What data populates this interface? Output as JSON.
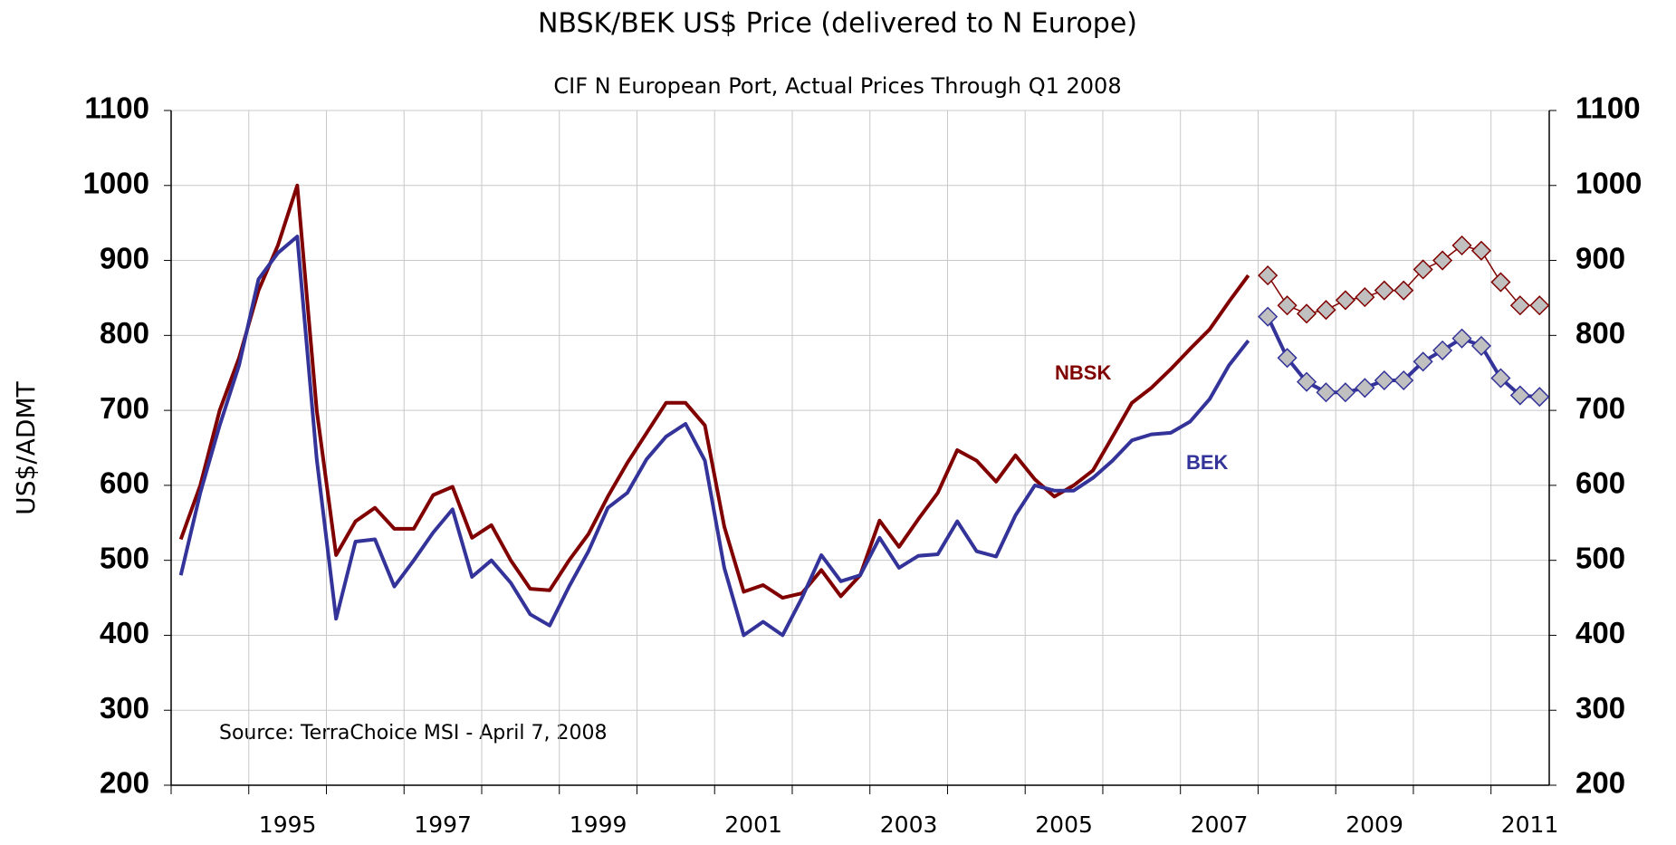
{
  "chart_data": {
    "type": "line",
    "title": "NBSK/BEK US$ Price (delivered to N Europe)",
    "subtitle": "CIF N European Port,  Actual Prices Through Q1 2008",
    "y_label": "US$/ADMT",
    "source": "Source: TerraChoice MSI - April 7, 2008",
    "x": [
      1994.125,
      1994.375,
      1994.625,
      1994.875,
      1995.125,
      1995.375,
      1995.625,
      1995.875,
      1996.125,
      1996.375,
      1996.625,
      1996.875,
      1997.125,
      1997.375,
      1997.625,
      1997.875,
      1998.125,
      1998.375,
      1998.625,
      1998.875,
      1999.125,
      1999.375,
      1999.625,
      1999.875,
      2000.125,
      2000.375,
      2000.625,
      2000.875,
      2001.125,
      2001.375,
      2001.625,
      2001.875,
      2002.125,
      2002.375,
      2002.625,
      2002.875,
      2003.125,
      2003.375,
      2003.625,
      2003.875,
      2004.125,
      2004.375,
      2004.625,
      2004.875,
      2005.125,
      2005.375,
      2005.625,
      2005.875,
      2006.125,
      2006.375,
      2006.625,
      2006.875,
      2007.125,
      2007.375,
      2007.625,
      2007.875,
      2008.125,
      2008.375,
      2008.625,
      2008.875,
      2009.125,
      2009.375,
      2009.625,
      2009.875,
      2010.125,
      2010.375,
      2010.625,
      2010.875,
      2011.125,
      2011.375,
      2011.625
    ],
    "xlim": [
      1994,
      2011.75
    ],
    "xticks": [
      1995,
      1997,
      1999,
      2001,
      2003,
      2005,
      2007,
      2009,
      2011
    ],
    "xgridticks": [
      1994,
      1995,
      1996,
      1997,
      1998,
      1999,
      2000,
      2001,
      2002,
      2003,
      2004,
      2005,
      2006,
      2007,
      2008,
      2009,
      2010,
      2011
    ],
    "ylim": [
      200,
      1100
    ],
    "yticks": [
      200,
      300,
      400,
      500,
      600,
      700,
      800,
      900,
      1000,
      1100
    ],
    "y2lim": [
      200,
      1100
    ],
    "y2ticks": [
      200,
      300,
      400,
      500,
      600,
      700,
      800,
      900,
      1000,
      1100
    ],
    "grid": true,
    "series": [
      {
        "name": "NBSK",
        "color": "#800000",
        "width": 4,
        "values": [
          528,
          600,
          700,
          770,
          860,
          920,
          1000,
          700,
          507,
          552,
          570,
          542,
          542,
          587,
          598,
          530,
          547,
          500,
          462,
          460,
          500,
          535,
          585,
          630,
          670,
          710,
          710,
          680,
          545,
          458,
          467,
          450,
          456,
          487,
          452,
          480,
          553,
          518,
          555,
          590,
          647,
          633,
          605,
          640,
          608,
          585,
          600,
          620,
          665,
          710,
          730,
          755,
          782,
          808,
          845,
          880,
          null,
          null,
          null,
          null,
          null,
          null,
          null,
          null,
          null,
          null,
          null,
          null,
          null,
          null,
          null
        ]
      },
      {
        "color": "#800000",
        "width": 1.5,
        "marker": "diamond",
        "values": [
          null,
          null,
          null,
          null,
          null,
          null,
          null,
          null,
          null,
          null,
          null,
          null,
          null,
          null,
          null,
          null,
          null,
          null,
          null,
          null,
          null,
          null,
          null,
          null,
          null,
          null,
          null,
          null,
          null,
          null,
          null,
          null,
          null,
          null,
          null,
          null,
          null,
          null,
          null,
          null,
          null,
          null,
          null,
          null,
          null,
          null,
          null,
          null,
          null,
          null,
          null,
          null,
          null,
          null,
          null,
          null,
          880,
          840,
          829,
          834,
          847,
          851,
          860,
          860,
          888,
          900,
          920,
          913,
          871,
          840,
          840
        ]
      },
      {
        "name": "BEK",
        "color": "#333399",
        "width": 4,
        "values": [
          480,
          590,
          680,
          760,
          875,
          910,
          932,
          635,
          422,
          525,
          528,
          465,
          500,
          537,
          568,
          478,
          500,
          470,
          428,
          413,
          465,
          512,
          570,
          590,
          635,
          665,
          682,
          633,
          490,
          400,
          418,
          400,
          450,
          507,
          472,
          480,
          530,
          490,
          506,
          508,
          552,
          512,
          505,
          560,
          600,
          593,
          593,
          610,
          633,
          660,
          668,
          670,
          685,
          715,
          760,
          793,
          null,
          null,
          null,
          null,
          null,
          null,
          null,
          null,
          null,
          null,
          null,
          null,
          null,
          null,
          null
        ]
      },
      {
        "color": "#333399",
        "width": 4,
        "marker": "diamond",
        "values": [
          null,
          null,
          null,
          null,
          null,
          null,
          null,
          null,
          null,
          null,
          null,
          null,
          null,
          null,
          null,
          null,
          null,
          null,
          null,
          null,
          null,
          null,
          null,
          null,
          null,
          null,
          null,
          null,
          null,
          null,
          null,
          null,
          null,
          null,
          null,
          null,
          null,
          null,
          null,
          null,
          null,
          null,
          null,
          null,
          null,
          null,
          null,
          null,
          null,
          null,
          null,
          null,
          null,
          null,
          null,
          null,
          825,
          770,
          738,
          724,
          724,
          730,
          740,
          740,
          765,
          780,
          796,
          786,
          743,
          720,
          718
        ]
      }
    ]
  }
}
